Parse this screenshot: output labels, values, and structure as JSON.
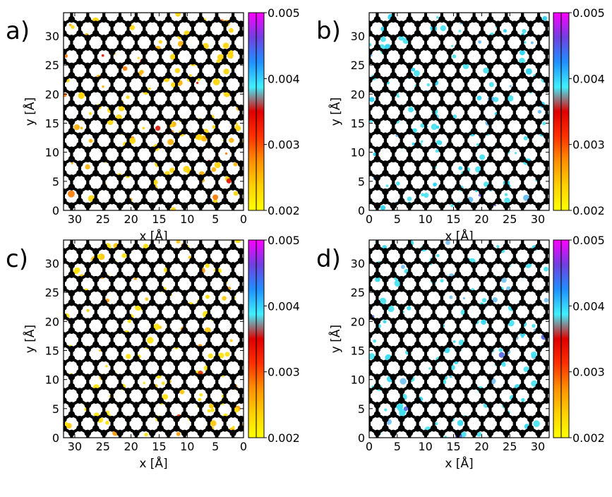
{
  "figure": {
    "description_free": true
  },
  "chart_data": [
    {
      "type": "heatmap",
      "panel_label": "a)",
      "xlabel": "x [Å]",
      "ylabel": "y [Å]",
      "xlim": [
        32,
        0
      ],
      "ylim": [
        0,
        34
      ],
      "x_ticks": [
        "30",
        "25",
        "20",
        "15",
        "10",
        "5",
        "0"
      ],
      "x_tick_values": [
        30,
        25,
        20,
        15,
        10,
        5,
        0
      ],
      "y_ticks": [
        "0",
        "5",
        "10",
        "15",
        "20",
        "25",
        "30"
      ],
      "y_tick_values": [
        0,
        5,
        10,
        15,
        20,
        25,
        30
      ],
      "colorbar": {
        "range": [
          0.002,
          0.005
        ],
        "ticks": [
          "0.002",
          "0.003",
          "0.004",
          "0.005"
        ],
        "tick_values": [
          0.002,
          0.003,
          0.004,
          0.005
        ]
      },
      "highlight_colors": [
        "#ffd400",
        "#ffb000",
        "#ff7a00",
        "#e01000"
      ],
      "spot_seed": 11
    },
    {
      "type": "heatmap",
      "panel_label": "b)",
      "xlabel": "x [Å]",
      "ylabel": "y [Å]",
      "xlim": [
        0,
        32
      ],
      "ylim": [
        0,
        34
      ],
      "x_ticks": [
        "0",
        "5",
        "10",
        "15",
        "20",
        "25",
        "30"
      ],
      "x_tick_values": [
        0,
        5,
        10,
        15,
        20,
        25,
        30
      ],
      "y_ticks": [
        "0",
        "5",
        "10",
        "15",
        "20",
        "25",
        "30"
      ],
      "y_tick_values": [
        0,
        5,
        10,
        15,
        20,
        25,
        30
      ],
      "colorbar": {
        "range": [
          0.002,
          0.005
        ],
        "ticks": [
          "0.002",
          "0.003",
          "0.004",
          "0.005"
        ],
        "tick_values": [
          0.002,
          0.003,
          0.004,
          0.005
        ]
      },
      "highlight_colors": [
        "#40e0f0",
        "#20d0f0",
        "#60b8f0",
        "#7060e0"
      ],
      "spot_seed": 23
    },
    {
      "type": "heatmap",
      "panel_label": "c)",
      "xlabel": "x [Å]",
      "ylabel": "y [Å]",
      "xlim": [
        32,
        0
      ],
      "ylim": [
        0,
        34
      ],
      "x_ticks": [
        "30",
        "25",
        "20",
        "15",
        "10",
        "5",
        "0"
      ],
      "x_tick_values": [
        30,
        25,
        20,
        15,
        10,
        5,
        0
      ],
      "y_ticks": [
        "0",
        "5",
        "10",
        "15",
        "20",
        "25",
        "30"
      ],
      "y_tick_values": [
        0,
        5,
        10,
        15,
        20,
        25,
        30
      ],
      "colorbar": {
        "range": [
          0.002,
          0.005
        ],
        "ticks": [
          "0.002",
          "0.003",
          "0.004",
          "0.005"
        ],
        "tick_values": [
          0.002,
          0.003,
          0.004,
          0.005
        ]
      },
      "highlight_colors": [
        "#ffe000",
        "#ffc400",
        "#ff9a00",
        "#e03000"
      ],
      "spot_seed": 37
    },
    {
      "type": "heatmap",
      "panel_label": "d)",
      "xlabel": "x [Å]",
      "ylabel": "y [Å]",
      "xlim": [
        0,
        32
      ],
      "ylim": [
        0,
        34
      ],
      "x_ticks": [
        "0",
        "5",
        "10",
        "15",
        "20",
        "25",
        "30"
      ],
      "x_tick_values": [
        0,
        5,
        10,
        15,
        20,
        25,
        30
      ],
      "y_ticks": [
        "0",
        "5",
        "10",
        "15",
        "20",
        "25",
        "30"
      ],
      "y_tick_values": [
        0,
        5,
        10,
        15,
        20,
        25,
        30
      ],
      "colorbar": {
        "range": [
          0.002,
          0.005
        ],
        "ticks": [
          "0.002",
          "0.003",
          "0.004",
          "0.005"
        ],
        "tick_values": [
          0.002,
          0.003,
          0.004,
          0.005
        ]
      },
      "highlight_colors": [
        "#40e0f0",
        "#30d8f0",
        "#70c0f0",
        "#5060e0"
      ],
      "spot_seed": 51
    }
  ],
  "colorbar_gradient": [
    "#ffff00",
    "#ffd000",
    "#ff9000",
    "#ff3000",
    "#e00000",
    "#40f0ff",
    "#2090ff",
    "#7040e0",
    "#ff00ff"
  ]
}
